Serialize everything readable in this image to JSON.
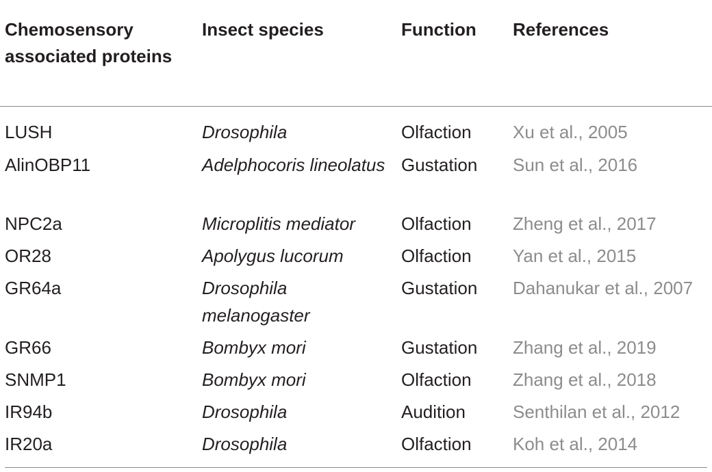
{
  "table": {
    "headers": {
      "col1": "Chemosensory associated proteins",
      "col2": "Insect species",
      "col3": "Function",
      "col4": "References"
    },
    "rows": [
      {
        "protein": "LUSH",
        "species": "Drosophila",
        "function": "Olfaction",
        "reference": "Xu et al., 2005"
      },
      {
        "protein": "AlinOBP11",
        "species": "Adelphocoris lineolatus",
        "function": "Gustation",
        "reference": "Sun et al., 2016"
      },
      {
        "protein": "NPC2a",
        "species": "Microplitis mediator",
        "function": "Olfaction",
        "reference": "Zheng et al., 2017"
      },
      {
        "protein": "OR28",
        "species": "Apolygus lucorum",
        "function": "Olfaction",
        "reference": "Yan et al., 2015"
      },
      {
        "protein": "GR64a",
        "species": "Drosophila melanogaster",
        "function": "Gustation",
        "reference": "Dahanukar et al., 2007"
      },
      {
        "protein": "GR66",
        "species": "Bombyx mori",
        "function": "Gustation",
        "reference": "Zhang et al., 2019"
      },
      {
        "protein": "SNMP1",
        "species": "Bombyx mori",
        "function": "Olfaction",
        "reference": "Zhang et al., 2018"
      },
      {
        "protein": "IR94b",
        "species": "Drosophila",
        "function": "Audition",
        "reference": "Senthilan et al., 2012"
      },
      {
        "protein": "IR20a",
        "species": "Drosophila",
        "function": "Olfaction",
        "reference": "Koh et al., 2014"
      }
    ]
  }
}
